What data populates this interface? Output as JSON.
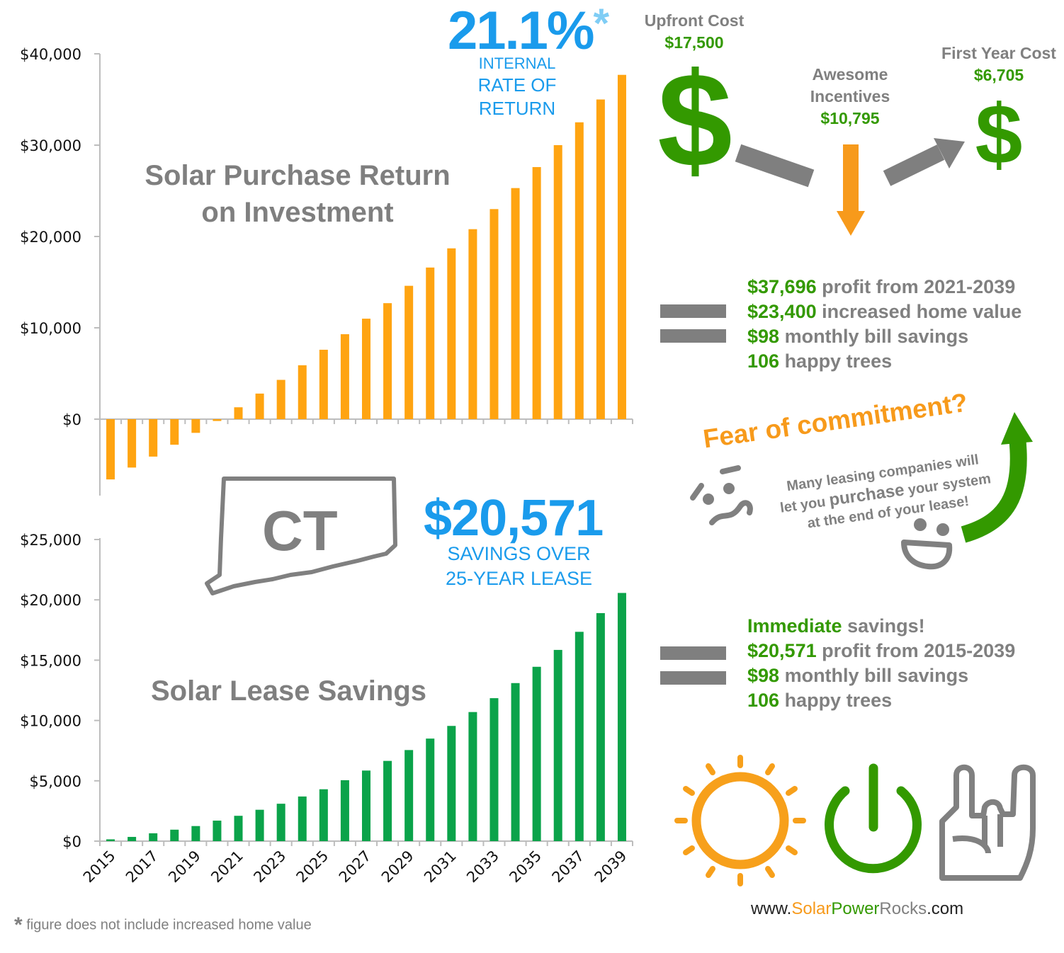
{
  "colors": {
    "orange": "#FFA411",
    "green": "#0BA34A",
    "blue": "#1A9BEC",
    "grey": "#808080",
    "money_green": "#339900"
  },
  "purchase": {
    "title_line1": "Solar Purchase Return",
    "title_line2": "on Investment",
    "irr_value": "21.1%",
    "irr_asterisk": "*",
    "irr_line1": "INTERNAL",
    "irr_line2": "RATE OF",
    "irr_line3": "RETURN"
  },
  "lease": {
    "title": "Solar Lease Savings",
    "savings_value": "$20,571",
    "savings_line1": "SAVINGS OVER",
    "savings_line2": "25-YEAR LEASE"
  },
  "state_label": "CT",
  "costs": {
    "upfront_label": "Upfront Cost",
    "upfront_value": "$17,500",
    "incentives_label1": "Awesome",
    "incentives_label2": "Incentives",
    "incentives_value": "$10,795",
    "first_year_label": "First Year Cost",
    "first_year_value": "$6,705",
    "dollar_sign": "$"
  },
  "purchase_stats": [
    {
      "num": "$37,696",
      "text": " profit from 2021-2039"
    },
    {
      "num": "$23,400",
      "text": " increased home value"
    },
    {
      "num": "$98",
      "text": " monthly bill savings"
    },
    {
      "num": "106",
      "text": " happy trees"
    }
  ],
  "lease_stats": [
    {
      "num": "Immediate",
      "text": " savings!"
    },
    {
      "num": "$20,571",
      "text": " profit from 2015-2039"
    },
    {
      "num": "$98",
      "text": " monthly bill savings"
    },
    {
      "num": "106",
      "text": " happy trees"
    }
  ],
  "fear": {
    "heading": "Fear of commitment?",
    "line1": "Many leasing companies will",
    "line2_pre": "let you ",
    "line2_em": "purchase",
    "line2_post": " your system",
    "line3": "at the end of your lease!"
  },
  "footnote_star": "*",
  "footnote": "figure does not include increased home value",
  "website": {
    "prefix": "www.",
    "solar": "Solar",
    "power": "Power",
    "rocks": "Rocks",
    "suffix": ".com"
  },
  "chart_data": [
    {
      "type": "bar",
      "title": "Solar Purchase Return on Investment",
      "x": [
        2015,
        2016,
        2017,
        2018,
        2019,
        2020,
        2021,
        2022,
        2023,
        2024,
        2025,
        2026,
        2027,
        2028,
        2029,
        2030,
        2031,
        2032,
        2033,
        2034,
        2035,
        2036,
        2037,
        2038,
        2039
      ],
      "values": [
        -6600,
        -5300,
        -4100,
        -2800,
        -1500,
        -200,
        1300,
        2800,
        4300,
        5900,
        7600,
        9300,
        11000,
        12700,
        14600,
        16600,
        18700,
        20800,
        23000,
        25300,
        27600,
        30000,
        32500,
        35000,
        37696
      ],
      "yticks": [
        "$40,000",
        "$30,000",
        "$20,000",
        "$10,000",
        "$0"
      ],
      "ylim": [
        -8000,
        40000
      ],
      "color": "#FFA411",
      "grid": false
    },
    {
      "type": "bar",
      "title": "Solar Lease Savings",
      "x": [
        2015,
        2016,
        2017,
        2018,
        2019,
        2020,
        2021,
        2022,
        2023,
        2024,
        2025,
        2026,
        2027,
        2028,
        2029,
        2030,
        2031,
        2032,
        2033,
        2034,
        2035,
        2036,
        2037,
        2038,
        2039
      ],
      "values": [
        150,
        350,
        650,
        950,
        1250,
        1700,
        2100,
        2600,
        3100,
        3700,
        4300,
        5050,
        5850,
        6650,
        7550,
        8500,
        9550,
        10700,
        11850,
        13100,
        14450,
        15850,
        17350,
        18900,
        20571
      ],
      "xticks": [
        "2015",
        "2017",
        "2019",
        "2021",
        "2023",
        "2025",
        "2027",
        "2029",
        "2031",
        "2033",
        "2035",
        "2037",
        "2039"
      ],
      "yticks": [
        "$25,000",
        "$20,000",
        "$15,000",
        "$10,000",
        "$5,000",
        "$0"
      ],
      "ylim": [
        0,
        25000
      ],
      "color": "#0BA34A",
      "grid": false
    }
  ]
}
